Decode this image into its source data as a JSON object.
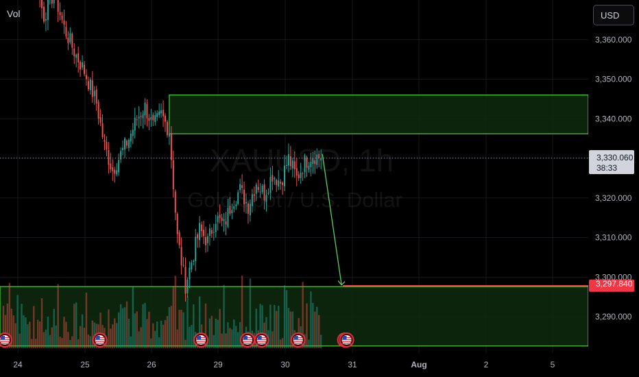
{
  "header": {
    "volume_label": "Vol",
    "currency_button": "USD"
  },
  "watermark": {
    "symbol": "XAUUSD, 1h",
    "name": "Gold Spot / U.S. Dollar"
  },
  "price_labels": {
    "current_price": "3,330.060",
    "countdown": "38:33",
    "target_price": "3,297.840"
  },
  "colors": {
    "up": "#26a69a",
    "down": "#ef5350",
    "zone_border": "#4cd137",
    "zone_fill": "#0d2a0d",
    "target_line": "#f23645",
    "arrow": "#5fd35f"
  },
  "chart_data": {
    "type": "candlestick",
    "symbol": "XAUUSD",
    "timeframe": "1h",
    "x_ticks": [
      "24",
      "25",
      "26",
      "29",
      "30",
      "31",
      "Aug",
      "2",
      "5"
    ],
    "y_ticks": [
      "3,290.000",
      "3,300.000",
      "3,310.000",
      "3,320.000",
      "3,330.000",
      "3,340.000",
      "3,350.000",
      "3,360.000"
    ],
    "ylim": [
      3282,
      3369
    ],
    "last_close": 3330.06,
    "target": 3297.84,
    "resistance_zone": [
      3336.2,
      3346.0
    ],
    "support_zone": [
      3282.6,
      3297.6
    ],
    "path_points": [
      [
        0,
        3388
      ],
      [
        8,
        3380
      ],
      [
        12,
        3384
      ],
      [
        16,
        3374
      ],
      [
        20,
        3366
      ],
      [
        25,
        3372
      ],
      [
        30,
        3363
      ],
      [
        35,
        3357
      ],
      [
        40,
        3352
      ],
      [
        46,
        3344
      ],
      [
        50,
        3333
      ],
      [
        54,
        3327
      ],
      [
        58,
        3331
      ],
      [
        62,
        3335
      ],
      [
        66,
        3340
      ],
      [
        70,
        3343
      ],
      [
        74,
        3338
      ],
      [
        78,
        3341
      ],
      [
        82,
        3337
      ],
      [
        86,
        3310
      ],
      [
        90,
        3298
      ],
      [
        93,
        3304
      ],
      [
        97,
        3312
      ],
      [
        101,
        3309
      ],
      [
        105,
        3315
      ],
      [
        109,
        3313
      ],
      [
        113,
        3319
      ],
      [
        117,
        3322
      ],
      [
        121,
        3318
      ],
      [
        125,
        3324
      ],
      [
        129,
        3321
      ],
      [
        133,
        3326
      ],
      [
        137,
        3324
      ],
      [
        141,
        3330
      ],
      [
        145,
        3325
      ],
      [
        149,
        3329
      ],
      [
        153,
        3331
      ],
      [
        157,
        3330
      ]
    ],
    "event_markers": [
      [
        0,
        3339.5
      ],
      [
        47,
        3300
      ],
      [
        97,
        3300
      ],
      [
        120,
        3315
      ],
      [
        127,
        3318
      ],
      [
        145,
        3319
      ],
      [
        168,
        3318
      ],
      [
        169,
        3318.8
      ]
    ]
  }
}
